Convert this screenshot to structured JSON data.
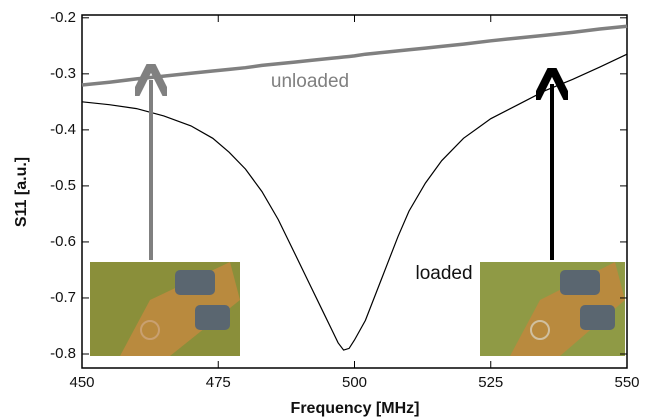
{
  "chart_data": {
    "type": "line",
    "x_label": "Frequency [MHz]",
    "y_label": "S11 [a.u.]",
    "annotations": [
      "unloaded",
      "loaded"
    ],
    "x": [
      450,
      455,
      460,
      465,
      470,
      474,
      477,
      480,
      483,
      486,
      489,
      492,
      494,
      496,
      497,
      498,
      499,
      500,
      502,
      504,
      506,
      508,
      510,
      513,
      516,
      520,
      525,
      530,
      535,
      540,
      545,
      550
    ],
    "series": [
      {
        "name": "unloaded",
        "color": "#808080",
        "values": [
          -0.32,
          -0.315,
          -0.309,
          -0.304,
          -0.299,
          -0.295,
          -0.292,
          -0.289,
          -0.285,
          -0.282,
          -0.279,
          -0.276,
          -0.274,
          -0.272,
          -0.271,
          -0.27,
          -0.269,
          -0.268,
          -0.265,
          -0.263,
          -0.261,
          -0.259,
          -0.257,
          -0.254,
          -0.251,
          -0.247,
          -0.241,
          -0.236,
          -0.231,
          -0.226,
          -0.22,
          -0.215
        ]
      },
      {
        "name": "loaded",
        "color": "#000000",
        "values": [
          -0.35,
          -0.355,
          -0.362,
          -0.375,
          -0.393,
          -0.415,
          -0.44,
          -0.47,
          -0.51,
          -0.56,
          -0.62,
          -0.68,
          -0.72,
          -0.76,
          -0.78,
          -0.793,
          -0.79,
          -0.775,
          -0.74,
          -0.69,
          -0.64,
          -0.59,
          -0.545,
          -0.495,
          -0.455,
          -0.415,
          -0.38,
          -0.355,
          -0.33,
          -0.31,
          -0.288,
          -0.265
        ]
      }
    ],
    "xlim": [
      450,
      550
    ],
    "xticks": [
      450,
      475,
      500,
      525,
      550
    ],
    "ylim": [
      -0.825,
      -0.195
    ],
    "yticks": [
      -0.2,
      -0.3,
      -0.4,
      -0.5,
      -0.6,
      -0.7,
      -0.8
    ],
    "grid": false
  }
}
